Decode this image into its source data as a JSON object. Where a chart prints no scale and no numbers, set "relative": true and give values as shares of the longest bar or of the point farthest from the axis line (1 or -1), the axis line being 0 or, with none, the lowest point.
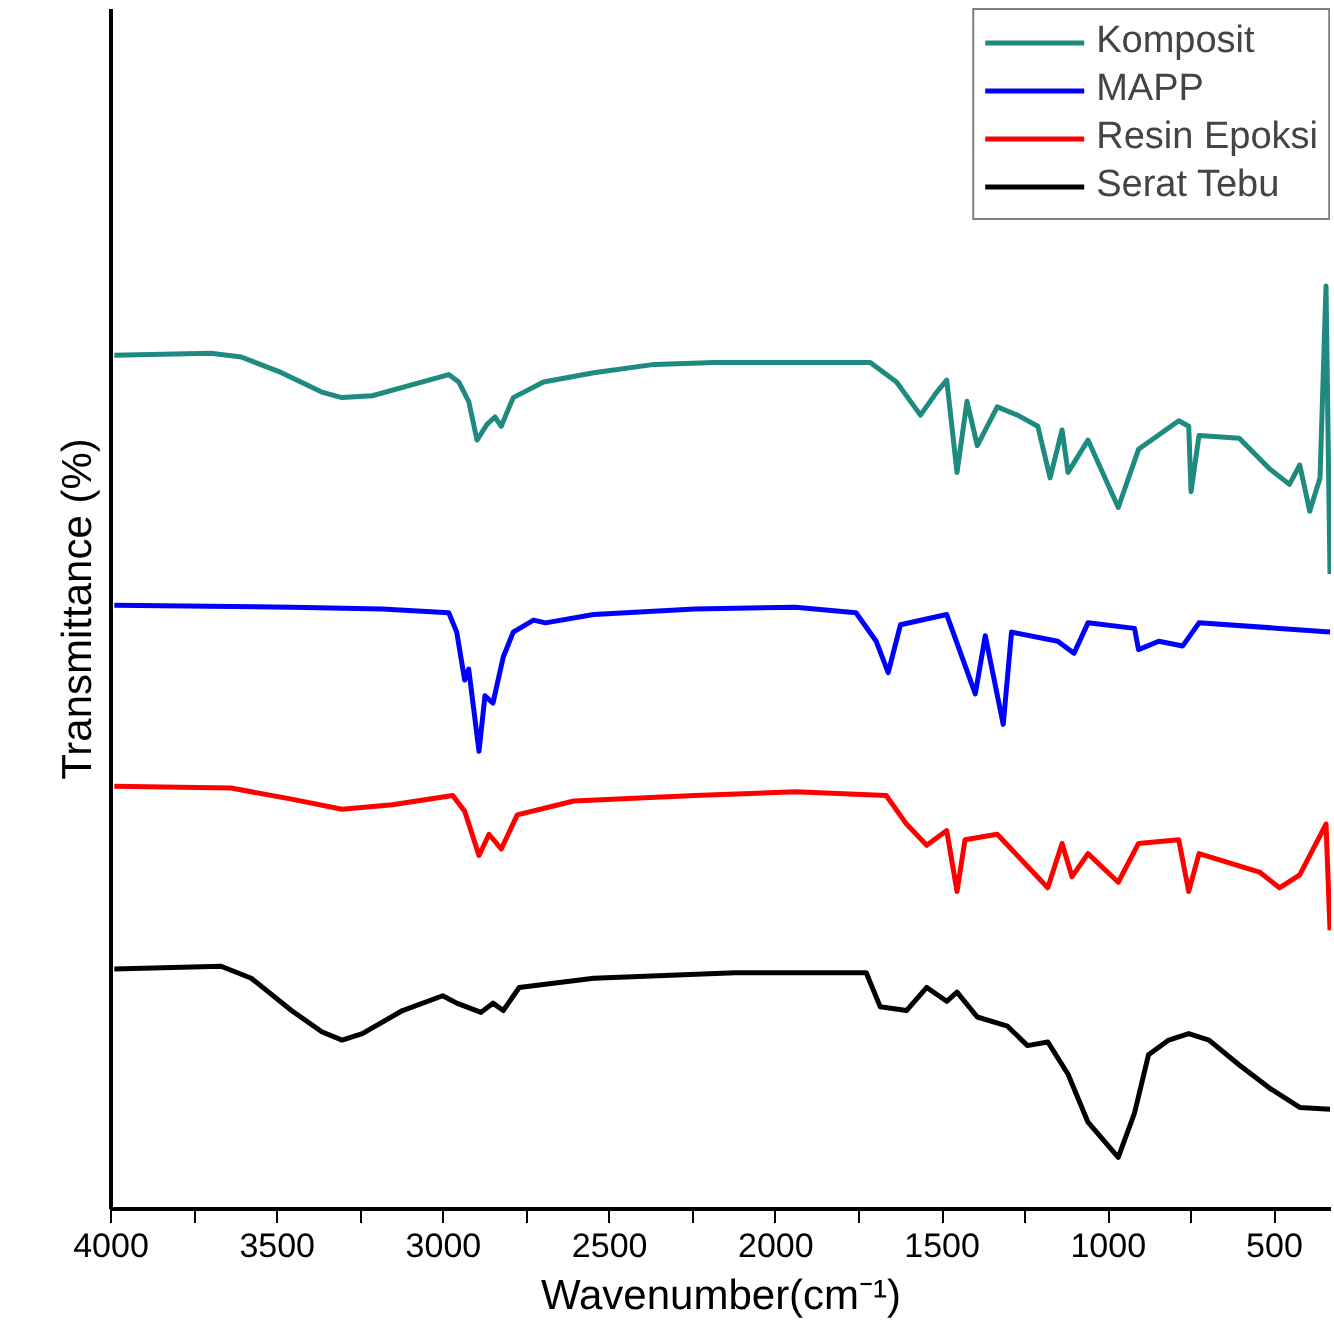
{
  "chart_data": {
    "type": "line",
    "relative": true,
    "xlabel": "Wavenumber(cm⁻¹)",
    "ylabel": "Transmittance (%)",
    "xlim": [
      4000,
      330
    ],
    "xticks": [
      4000,
      {
        "value": 3750,
        "label": null
      },
      3500,
      {
        "value": 3250,
        "label": null
      },
      3000,
      {
        "value": 2750,
        "label": null
      },
      2500,
      {
        "value": 2250,
        "label": null
      },
      2000,
      {
        "value": 1750,
        "label": null
      },
      1500,
      {
        "value": 1250,
        "label": null
      },
      1000,
      {
        "value": 750,
        "label": null
      },
      500
    ],
    "tick_labels": "x",
    "grid": false,
    "legend": "top right",
    "marker": "none",
    "line_style": "solid",
    "series": [
      {
        "name": "Komposit",
        "color": "#1f8a80",
        "x": [
          3990,
          3700,
          3608,
          3487,
          3366,
          3305,
          3214,
          3063,
          2984,
          2954,
          2924,
          2899,
          2869,
          2845,
          2826,
          2790,
          2699,
          2548,
          2365,
          2183,
          1941,
          1716,
          1637,
          1565,
          1516,
          1486,
          1455,
          1425,
          1394,
          1334,
          1273,
          1212,
          1175,
          1139,
          1121,
          1061,
          970,
          909,
          788,
          758,
          751,
          727,
          606,
          515,
          455,
          424,
          394,
          363,
          345,
          333
        ],
        "values": [
          0.925,
          0.927,
          0.923,
          0.906,
          0.885,
          0.879,
          0.881,
          0.896,
          0.904,
          0.896,
          0.875,
          0.833,
          0.85,
          0.858,
          0.848,
          0.879,
          0.896,
          0.906,
          0.915,
          0.917,
          0.917,
          0.917,
          0.896,
          0.86,
          0.885,
          0.898,
          0.798,
          0.875,
          0.827,
          0.869,
          0.86,
          0.848,
          0.792,
          0.844,
          0.798,
          0.833,
          0.76,
          0.823,
          0.854,
          0.848,
          0.777,
          0.838,
          0.835,
          0.802,
          0.785,
          0.806,
          0.756,
          0.792,
          1.0,
          0.688
        ]
      },
      {
        "name": "MAPP",
        "color": "#0000ff",
        "x": [
          3990,
          3457,
          3184,
          2984,
          2960,
          2936,
          2924,
          2893,
          2875,
          2851,
          2820,
          2790,
          2729,
          2693,
          2548,
          2244,
          1941,
          1759,
          1698,
          1662,
          1625,
          1486,
          1400,
          1370,
          1316,
          1291,
          1152,
          1103,
          1061,
          921,
          909,
          848,
          776,
          727,
          485,
          333
        ],
        "values": [
          0.654,
          0.652,
          0.65,
          0.646,
          0.625,
          0.573,
          0.585,
          0.496,
          0.556,
          0.548,
          0.598,
          0.625,
          0.638,
          0.635,
          0.644,
          0.65,
          0.652,
          0.646,
          0.615,
          0.581,
          0.633,
          0.644,
          0.558,
          0.621,
          0.525,
          0.625,
          0.615,
          0.602,
          0.635,
          0.629,
          0.606,
          0.615,
          0.61,
          0.635,
          0.629,
          0.625
        ]
      },
      {
        "name": "Resin Epoksi",
        "color": "#ff0000",
        "x": [
          3990,
          3639,
          3457,
          3305,
          3154,
          2972,
          2936,
          2893,
          2863,
          2826,
          2778,
          2608,
          2244,
          1941,
          1668,
          1607,
          1546,
          1486,
          1455,
          1431,
          1334,
          1182,
          1139,
          1109,
          1061,
          970,
          909,
          788,
          758,
          727,
          545,
          485,
          424,
          345,
          333
        ],
        "values": [
          0.458,
          0.456,
          0.444,
          0.433,
          0.438,
          0.448,
          0.431,
          0.383,
          0.406,
          0.39,
          0.427,
          0.442,
          0.448,
          0.452,
          0.448,
          0.417,
          0.394,
          0.41,
          0.344,
          0.4,
          0.406,
          0.348,
          0.396,
          0.36,
          0.385,
          0.354,
          0.396,
          0.4,
          0.344,
          0.385,
          0.365,
          0.348,
          0.362,
          0.417,
          0.302
        ]
      },
      {
        "name": "Serat Tebu",
        "color": "#000000",
        "x": [
          3990,
          3669,
          3578,
          3457,
          3366,
          3305,
          3244,
          3123,
          3002,
          2960,
          2887,
          2851,
          2820,
          2772,
          2548,
          2123,
          1728,
          1686,
          1607,
          1546,
          1486,
          1455,
          1394,
          1303,
          1243,
          1182,
          1121,
          1061,
          970,
          921,
          879,
          818,
          758,
          697,
          606,
          515,
          424,
          333
        ],
        "values": [
          0.26,
          0.263,
          0.25,
          0.215,
          0.192,
          0.183,
          0.19,
          0.215,
          0.231,
          0.223,
          0.213,
          0.223,
          0.215,
          0.24,
          0.25,
          0.256,
          0.256,
          0.219,
          0.215,
          0.24,
          0.225,
          0.235,
          0.208,
          0.198,
          0.177,
          0.181,
          0.146,
          0.094,
          0.056,
          0.104,
          0.167,
          0.183,
          0.19,
          0.183,
          0.156,
          0.131,
          0.11,
          0.108
        ]
      }
    ]
  }
}
